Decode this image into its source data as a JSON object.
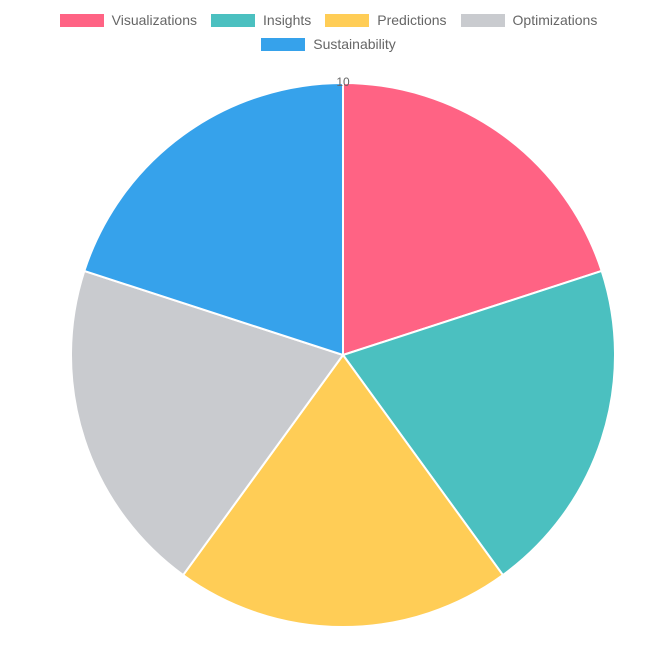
{
  "chart_data": {
    "type": "pie",
    "categories": [
      "Visualizations",
      "Insights",
      "Predictions",
      "Optimizations",
      "Sustainability"
    ],
    "values": [
      10,
      10,
      10,
      10,
      10
    ],
    "colors": [
      "#FF6384",
      "#4BC0C0",
      "#FFCD56",
      "#C9CBCF",
      "#36A2EB"
    ],
    "legend_position": "top",
    "radial_tick_label": "10"
  }
}
